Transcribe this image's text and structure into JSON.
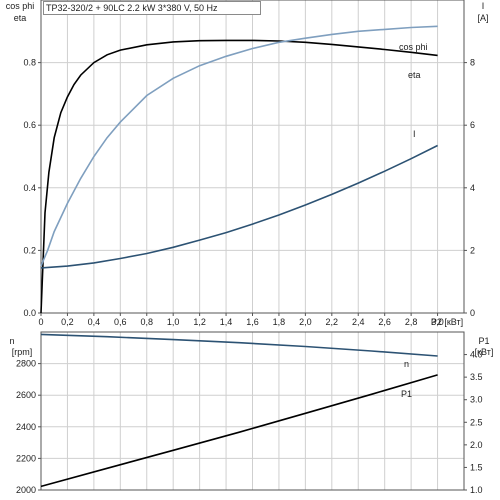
{
  "chart_data": [
    {
      "type": "line",
      "title": "TP32-320/2 + 90LC   2.2 kW   3*380 V, 50 Hz",
      "xlabel": "P2 [кВт]",
      "xlim": [
        0,
        3.2
      ],
      "x_ticks": [
        "0",
        "0,2",
        "0,4",
        "0,6",
        "0,8",
        "1,0",
        "1,2",
        "1,4",
        "1,6",
        "1,8",
        "2,0",
        "2,2",
        "2,4",
        "2,6",
        "2,8",
        "3,0"
      ],
      "ylabel_left": [
        "cos phi",
        "eta"
      ],
      "ylim_left": [
        0,
        1
      ],
      "y_ticks_left": [
        "0.0",
        "0.2",
        "0.4",
        "0.6",
        "0.8"
      ],
      "ylabel_right": [
        "I",
        "[A]"
      ],
      "ylim_right": [
        0,
        10
      ],
      "y_ticks_right": [
        "0",
        "2",
        "4",
        "6",
        "8"
      ],
      "grid": true,
      "series": [
        {
          "name": "eta",
          "axis": "left",
          "color": "#000000",
          "x": [
            0,
            0.03,
            0.06,
            0.1,
            0.15,
            0.2,
            0.25,
            0.3,
            0.4,
            0.5,
            0.6,
            0.8,
            1.0,
            1.2,
            1.4,
            1.6,
            1.8,
            2.0,
            2.2,
            2.4,
            2.6,
            2.8,
            3.0
          ],
          "values": [
            0,
            0.32,
            0.45,
            0.56,
            0.64,
            0.69,
            0.73,
            0.76,
            0.8,
            0.825,
            0.84,
            0.857,
            0.866,
            0.87,
            0.871,
            0.871,
            0.869,
            0.865,
            0.858,
            0.85,
            0.842,
            0.833,
            0.823
          ]
        },
        {
          "name": "cos phi",
          "axis": "left",
          "color": "#7f9fbf",
          "x": [
            0,
            0.05,
            0.1,
            0.2,
            0.3,
            0.4,
            0.5,
            0.6,
            0.8,
            1.0,
            1.2,
            1.4,
            1.6,
            1.8,
            2.0,
            2.2,
            2.4,
            2.6,
            2.8,
            3.0
          ],
          "values": [
            0.15,
            0.2,
            0.26,
            0.35,
            0.43,
            0.5,
            0.56,
            0.61,
            0.695,
            0.75,
            0.79,
            0.82,
            0.845,
            0.865,
            0.878,
            0.89,
            0.9,
            0.906,
            0.912,
            0.916
          ]
        },
        {
          "name": "I",
          "axis": "right",
          "color": "#2c5273",
          "x": [
            0,
            0.2,
            0.4,
            0.6,
            0.8,
            1.0,
            1.2,
            1.4,
            1.6,
            1.8,
            2.0,
            2.2,
            2.4,
            2.6,
            2.8,
            3.0
          ],
          "values": [
            1.44,
            1.5,
            1.6,
            1.74,
            1.9,
            2.1,
            2.33,
            2.57,
            2.84,
            3.13,
            3.45,
            3.79,
            4.15,
            4.53,
            4.93,
            5.35
          ]
        }
      ]
    },
    {
      "type": "line",
      "xlim": [
        0,
        3.2
      ],
      "ylabel_left": [
        "n",
        "[rpm]"
      ],
      "ylim_left": [
        2000,
        3000
      ],
      "y_ticks_left": [
        "2000",
        "2200",
        "2400",
        "2600",
        "2800"
      ],
      "ylabel_right": [
        "P1",
        "[кВт]"
      ],
      "ylim_right": [
        1,
        4.5
      ],
      "y_ticks_right": [
        "1.0",
        "1.5",
        "2.0",
        "2.5",
        "3.0",
        "3.5",
        "4.0"
      ],
      "grid": true,
      "series": [
        {
          "name": "n",
          "axis": "left",
          "color": "#2c5273",
          "x": [
            0,
            0.5,
            1.0,
            1.5,
            2.0,
            2.5,
            3.0
          ],
          "values": [
            2985,
            2970,
            2952,
            2932,
            2908,
            2880,
            2848
          ]
        },
        {
          "name": "P1",
          "axis": "right",
          "color": "#000000",
          "x": [
            0,
            0.5,
            1.0,
            1.5,
            2.0,
            2.5,
            3.0
          ],
          "values": [
            1.08,
            1.48,
            1.88,
            2.28,
            2.7,
            3.12,
            3.55
          ]
        }
      ]
    }
  ]
}
